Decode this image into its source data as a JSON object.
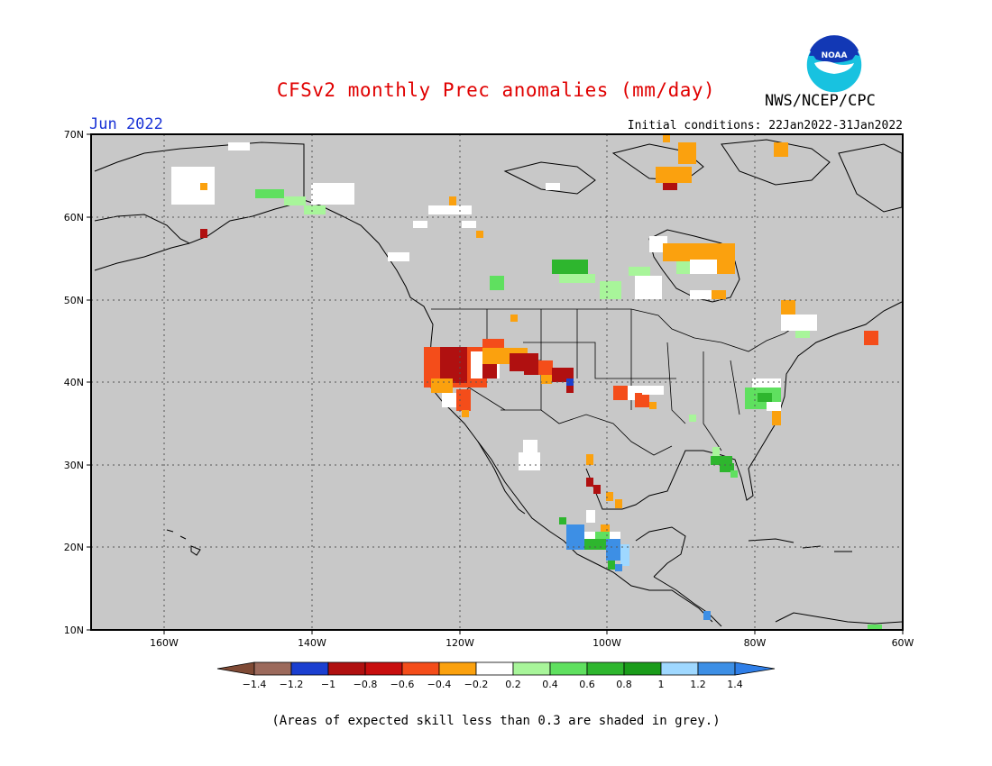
{
  "header": {
    "title": "CFSv2 monthly Prec anomalies (mm/day)",
    "agency": "NWS/NCEP/CPC",
    "month": "Jun 2022",
    "initial_conditions": "Initial conditions: 22Jan2022-31Jan2022",
    "logo_text": "NOAA"
  },
  "map": {
    "lat_labels": [
      "70N",
      "60N",
      "50N",
      "40N",
      "30N",
      "20N",
      "10N"
    ],
    "lon_labels": [
      "160W",
      "140W",
      "120W",
      "100W",
      "80W",
      "60W"
    ],
    "lat_range": [
      10,
      70
    ],
    "lon_range": [
      -170,
      -60
    ],
    "grey_color": "#c8c8c8",
    "grid": true
  },
  "colorbar": {
    "labels": [
      "-1.4",
      "-1.2",
      "-1",
      "-0.8",
      "-0.6",
      "-0.4",
      "-0.2",
      "0.2",
      "0.4",
      "0.6",
      "0.8",
      "1",
      "1.2",
      "1.4"
    ],
    "low_end_color": "#7f4a35",
    "high_end_color": "#2f7fe8",
    "colors": [
      "#9c6a5c",
      "#1b3fd0",
      "#b01010",
      "#c80e0e",
      "#f44d1a",
      "#fba10e",
      "#ffffff",
      "#a8f59a",
      "#5fe05f",
      "#2eb62e",
      "#1a9c1a",
      "#9fd8ff",
      "#3d8fe5"
    ]
  },
  "footnote": "(Areas of expected skill less than 0.3 are shaded in grey.)"
}
